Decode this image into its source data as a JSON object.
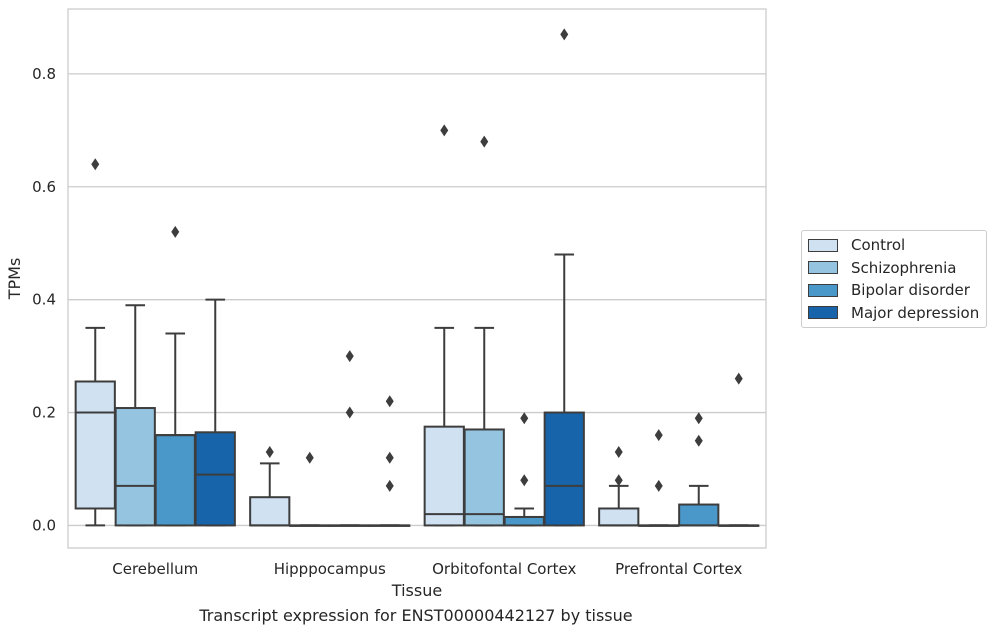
{
  "caption": "Transcript expression for ENST00000442127 by tissue",
  "chart_data": {
    "type": "box",
    "xlabel": "Tissue",
    "ylabel": "TPMs",
    "ylim": [
      -0.04,
      0.915
    ],
    "yticks": [
      0.0,
      0.2,
      0.4,
      0.6,
      0.8
    ],
    "ytick_labels": [
      "0.0",
      "0.2",
      "0.4",
      "0.6",
      "0.8"
    ],
    "categories": [
      "Cerebellum",
      "Hipppocampus",
      "Orbitofontal Cortex",
      "Prefrontal Cortex"
    ],
    "grid": "horizontal",
    "legend_position": "right",
    "series": [
      {
        "name": "Control",
        "color": "#d0e1f2",
        "boxes": [
          {
            "whislo": 0.0,
            "q1": 0.03,
            "med": 0.2,
            "q3": 0.255,
            "whishi": 0.35,
            "fliers": [
              0.64
            ]
          },
          {
            "whislo": 0.0,
            "q1": 0.0,
            "med": 0.0,
            "q3": 0.05,
            "whishi": 0.11,
            "fliers": [
              0.13
            ]
          },
          {
            "whislo": 0.0,
            "q1": 0.0,
            "med": 0.02,
            "q3": 0.175,
            "whishi": 0.35,
            "fliers": [
              0.7
            ]
          },
          {
            "whislo": 0.0,
            "q1": 0.0,
            "med": 0.0,
            "q3": 0.03,
            "whishi": 0.07,
            "fliers": [
              0.08,
              0.13
            ]
          }
        ]
      },
      {
        "name": "Schizophrenia",
        "color": "#94c4df",
        "boxes": [
          {
            "whislo": 0.0,
            "q1": 0.0,
            "med": 0.07,
            "q3": 0.208,
            "whishi": 0.39,
            "fliers": []
          },
          {
            "whislo": 0.0,
            "q1": 0.0,
            "med": 0.0,
            "q3": 0.0,
            "whishi": 0.0,
            "fliers": [
              0.12
            ]
          },
          {
            "whislo": 0.0,
            "q1": 0.0,
            "med": 0.02,
            "q3": 0.17,
            "whishi": 0.35,
            "fliers": [
              0.68
            ]
          },
          {
            "whislo": 0.0,
            "q1": 0.0,
            "med": 0.0,
            "q3": 0.0,
            "whishi": 0.0,
            "fliers": [
              0.07,
              0.16
            ]
          }
        ]
      },
      {
        "name": "Bipolar disorder",
        "color": "#4a98c9",
        "boxes": [
          {
            "whislo": 0.0,
            "q1": 0.0,
            "med": 0.16,
            "q3": 0.16,
            "whishi": 0.34,
            "fliers": [
              0.52
            ]
          },
          {
            "whislo": 0.0,
            "q1": 0.0,
            "med": 0.0,
            "q3": 0.0,
            "whishi": 0.0,
            "fliers": [
              0.2,
              0.3
            ]
          },
          {
            "whislo": 0.0,
            "q1": 0.0,
            "med": 0.015,
            "q3": 0.015,
            "whishi": 0.03,
            "fliers": [
              0.08,
              0.19
            ]
          },
          {
            "whislo": 0.0,
            "q1": 0.0,
            "med": 0.0,
            "q3": 0.037,
            "whishi": 0.07,
            "fliers": [
              0.15,
              0.19
            ]
          }
        ]
      },
      {
        "name": "Major depression",
        "color": "#1764ab",
        "boxes": [
          {
            "whislo": 0.0,
            "q1": 0.0,
            "med": 0.09,
            "q3": 0.165,
            "whishi": 0.4,
            "fliers": []
          },
          {
            "whislo": 0.0,
            "q1": 0.0,
            "med": 0.0,
            "q3": 0.0,
            "whishi": 0.0,
            "fliers": [
              0.07,
              0.12,
              0.22
            ]
          },
          {
            "whislo": 0.0,
            "q1": 0.0,
            "med": 0.07,
            "q3": 0.2,
            "whishi": 0.48,
            "fliers": [
              0.87
            ]
          },
          {
            "whislo": 0.0,
            "q1": 0.0,
            "med": 0.0,
            "q3": 0.0,
            "whishi": 0.0,
            "fliers": [
              0.26
            ]
          }
        ]
      }
    ]
  }
}
